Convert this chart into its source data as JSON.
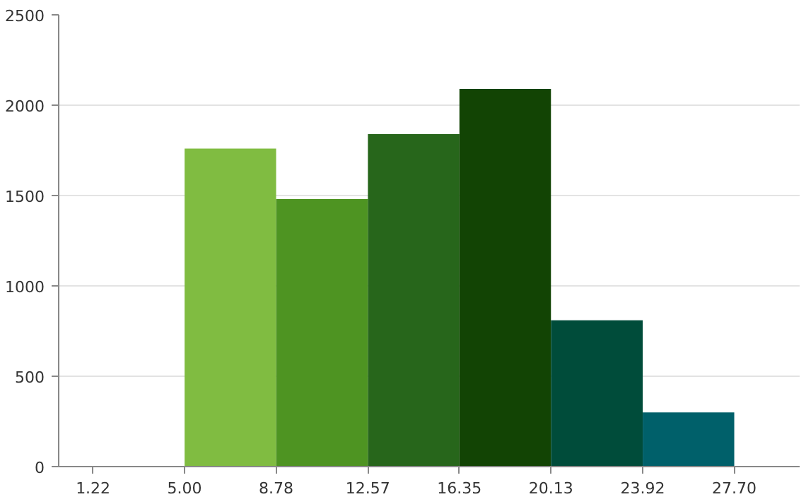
{
  "chart_data": {
    "type": "histogram",
    "bins": [
      1.22,
      5.0,
      8.78,
      12.57,
      16.35,
      20.13,
      23.92,
      27.7
    ],
    "values": [
      0,
      1760,
      1480,
      1840,
      2090,
      810,
      300
    ],
    "colors": [
      "#80bc41",
      "#80bc41",
      "#4e9422",
      "#27661b",
      "#124404",
      "#004c3a",
      "#00606a"
    ],
    "xlim": [
      -0.2,
      30.4
    ],
    "xticks": [
      1.22,
      {
        "value": 5,
        "label": "5.00"
      },
      8.78,
      12.57,
      16.35,
      20.13,
      23.92,
      {
        "value": 27.7,
        "label": "27.70"
      }
    ],
    "ylim": [
      0,
      2500
    ],
    "yticks": [
      0,
      500,
      1000,
      1500,
      2000,
      2500
    ],
    "grid": "y"
  }
}
